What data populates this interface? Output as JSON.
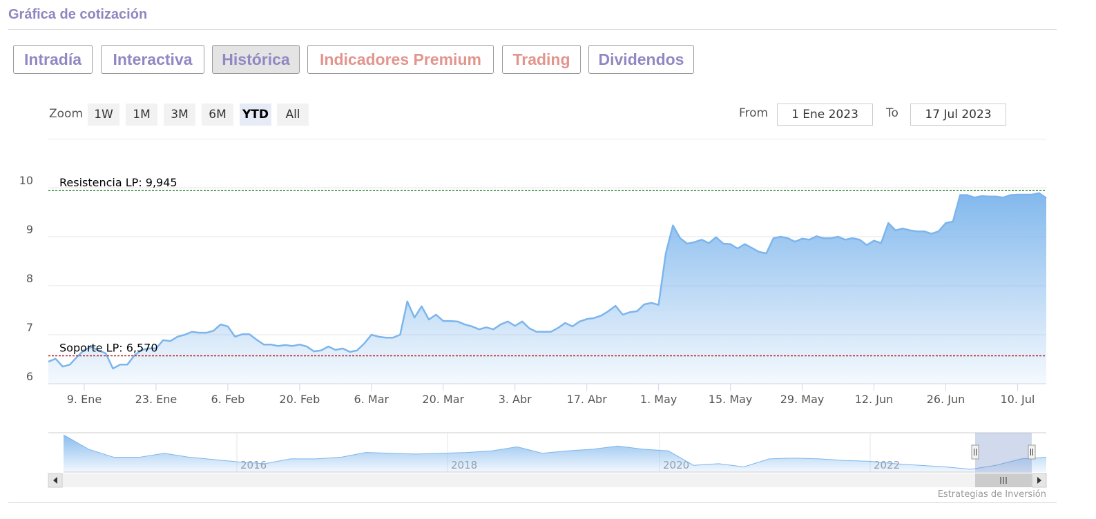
{
  "header": {
    "title": "Gráfica de cotización"
  },
  "tabs": [
    "Intradía",
    "Interactiva",
    "Histórica",
    "Indicadores Premium",
    "Trading",
    "Dividendos"
  ],
  "zoom": {
    "label": "Zoom",
    "buttons": [
      "1W",
      "1M",
      "3M",
      "6M",
      "YTD",
      "All"
    ]
  },
  "range": {
    "from_label": "From",
    "from": "1 Ene 2023",
    "to_label": "To",
    "to": "17 Jul 2023"
  },
  "chart_data": {
    "type": "area",
    "color": "#7cb5ec",
    "categories": [
      null,
      null,
      null,
      null,
      null,
      "9. Ene",
      null,
      null,
      null,
      null,
      null,
      null,
      null,
      null,
      null,
      "23. Ene",
      null,
      null,
      null,
      null,
      null,
      null,
      null,
      null,
      null,
      "6. Feb",
      null,
      null,
      null,
      null,
      null,
      null,
      null,
      null,
      null,
      "20. Feb",
      null,
      null,
      null,
      null,
      null,
      null,
      null,
      null,
      null,
      "6. Mar",
      null,
      null,
      null,
      null,
      null,
      null,
      null,
      null,
      null,
      "20. Mar",
      null,
      null,
      null,
      null,
      null,
      null,
      null,
      null,
      null,
      "3. Abr",
      null,
      null,
      null,
      null,
      null,
      null,
      null,
      null,
      null,
      "17. Abr",
      null,
      null,
      null,
      null,
      null,
      null,
      null,
      null,
      null,
      "1. May",
      null,
      null,
      null,
      null,
      null,
      null,
      null,
      null,
      null,
      "15. May",
      null,
      null,
      null,
      null,
      null,
      null,
      null,
      null,
      null,
      "29. May",
      null,
      null,
      null,
      null,
      null,
      null,
      null,
      null,
      null,
      "12. Jun",
      null,
      null,
      null,
      null,
      null,
      null,
      null,
      null,
      null,
      "26. Jun",
      null,
      null,
      null,
      null,
      null,
      null,
      null,
      null,
      null,
      "10. Jul",
      null,
      null,
      null,
      null
    ],
    "values": [
      6.45,
      6.51,
      6.35,
      6.39,
      6.55,
      6.69,
      6.75,
      6.68,
      6.62,
      6.31,
      6.39,
      6.39,
      6.58,
      6.69,
      6.72,
      6.72,
      6.89,
      6.87,
      6.96,
      7.0,
      7.06,
      7.04,
      7.04,
      7.08,
      7.21,
      7.17,
      6.96,
      7.01,
      7.01,
      6.9,
      6.8,
      6.8,
      6.77,
      6.79,
      6.77,
      6.8,
      6.76,
      6.66,
      6.68,
      6.76,
      6.69,
      6.72,
      6.65,
      6.68,
      6.82,
      7.0,
      6.96,
      6.94,
      6.94,
      7.0,
      7.68,
      7.35,
      7.58,
      7.31,
      7.41,
      7.28,
      7.28,
      7.27,
      7.21,
      7.17,
      7.11,
      7.15,
      7.11,
      7.21,
      7.27,
      7.18,
      7.27,
      7.13,
      7.06,
      7.06,
      7.06,
      7.14,
      7.24,
      7.17,
      7.27,
      7.32,
      7.34,
      7.39,
      7.48,
      7.59,
      7.41,
      7.46,
      7.48,
      7.62,
      7.65,
      7.61,
      8.66,
      9.23,
      8.97,
      8.86,
      8.89,
      8.94,
      8.87,
      8.99,
      8.86,
      8.85,
      8.76,
      8.85,
      8.77,
      8.69,
      8.66,
      8.97,
      9.0,
      8.97,
      8.9,
      8.96,
      8.94,
      9.01,
      8.97,
      8.97,
      9.0,
      8.94,
      8.97,
      8.94,
      8.83,
      8.92,
      8.87,
      9.28,
      9.13,
      9.17,
      9.13,
      9.11,
      9.11,
      9.06,
      9.11,
      9.28,
      9.31,
      9.85,
      9.85,
      9.8,
      9.83,
      9.82,
      9.82,
      9.8,
      9.85,
      9.86,
      9.86,
      9.86,
      9.89,
      9.79
    ],
    "ylim": [
      6,
      10
    ],
    "yticks": [
      6,
      7,
      8,
      9,
      10
    ],
    "grid": true,
    "plot_lines": [
      {
        "label": "Resistencia LP: 9,945",
        "value": 9.945,
        "color": "#2e7d32"
      },
      {
        "label": "Soporte LP: 6,570",
        "value": 6.57,
        "color": "#b22222"
      }
    ]
  },
  "navigator": {
    "xticks": [
      "2016",
      "2018",
      "2020",
      "2022"
    ],
    "values": [
      14.48,
      11.6,
      10,
      10,
      10.8,
      10,
      9.52,
      9.04,
      8.72,
      9.68,
      9.68,
      10,
      10.96,
      10.8,
      10.64,
      10.8,
      10.96,
      11.28,
      12.08,
      10.8,
      11.28,
      11.6,
      12.24,
      11.6,
      11.28,
      8.4,
      8.72,
      8.08,
      9.68,
      9.84,
      9.68,
      9.36,
      9.2,
      8.72,
      8.4,
      8.08,
      7.6,
      8.4,
      9.68,
      10
    ]
  },
  "footer": {
    "credit": "Estrategias de Inversión"
  }
}
